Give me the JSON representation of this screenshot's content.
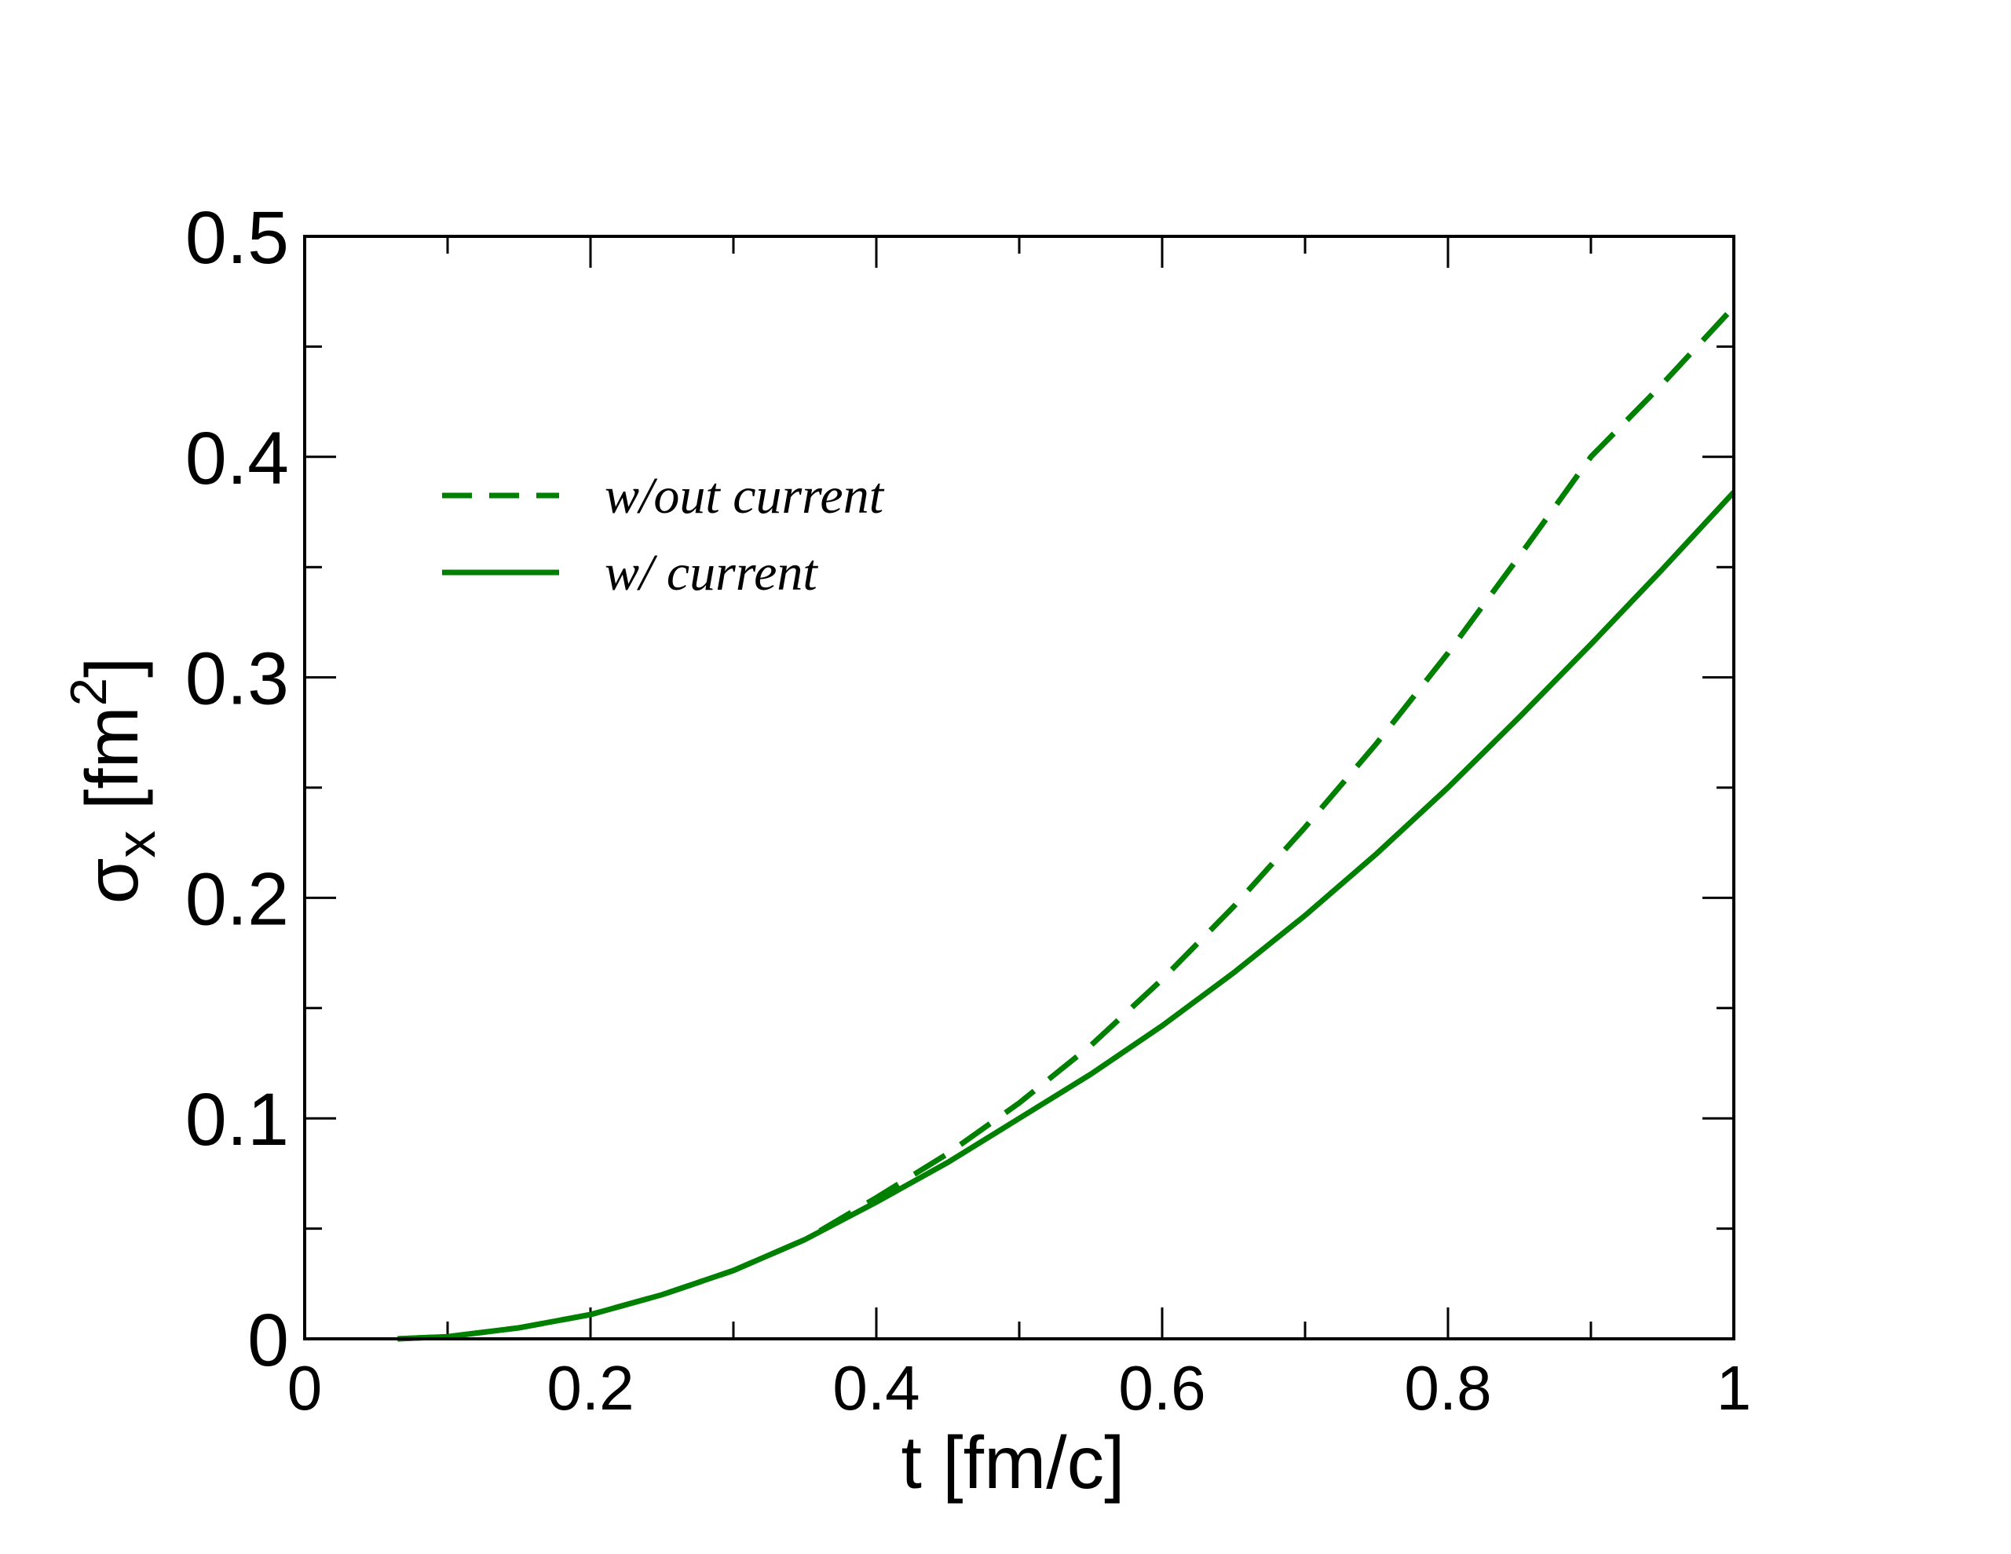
{
  "chart_data": {
    "type": "line",
    "xlabel": "t [fm/c]",
    "ylabel": [
      "σ",
      "x",
      " [fm",
      "2",
      "]"
    ],
    "xlim": [
      0,
      1
    ],
    "ylim": [
      0,
      0.5
    ],
    "xticks": [
      0,
      0.2,
      0.4,
      0.6,
      0.8,
      1
    ],
    "yticks": [
      0,
      0.1,
      0.2,
      0.3,
      0.4,
      0.5
    ],
    "xminorticks": [
      0.1,
      0.3,
      0.5,
      0.7,
      0.9
    ],
    "yminorticks": [
      0.05,
      0.15,
      0.25,
      0.35,
      0.45
    ],
    "legend": "upper left",
    "series": [
      {
        "name": "w/out current",
        "color": "#008000",
        "dash": true,
        "x": [
          0.065,
          0.1,
          0.15,
          0.2,
          0.25,
          0.3,
          0.35,
          0.4,
          0.45,
          0.5,
          0.55,
          0.6,
          0.65,
          0.7,
          0.75,
          0.8,
          0.85,
          0.9,
          0.95,
          1.0
        ],
        "values": [
          0,
          0.001,
          0.005,
          0.011,
          0.02,
          0.031,
          0.045,
          0.064,
          0.084,
          0.107,
          0.133,
          0.163,
          0.196,
          0.232,
          0.27,
          0.311,
          0.355,
          0.4,
          0.433,
          0.468
        ]
      },
      {
        "name": "w/ current",
        "color": "#008000",
        "dash": false,
        "x": [
          0.065,
          0.1,
          0.15,
          0.2,
          0.25,
          0.3,
          0.35,
          0.4,
          0.45,
          0.5,
          0.55,
          0.6,
          0.65,
          0.7,
          0.75,
          0.8,
          0.85,
          0.9,
          0.95,
          1.0
        ],
        "values": [
          0,
          0.001,
          0.005,
          0.011,
          0.02,
          0.031,
          0.045,
          0.062,
          0.08,
          0.1,
          0.12,
          0.142,
          0.166,
          0.192,
          0.22,
          0.25,
          0.282,
          0.315,
          0.349,
          0.384
        ]
      }
    ]
  }
}
